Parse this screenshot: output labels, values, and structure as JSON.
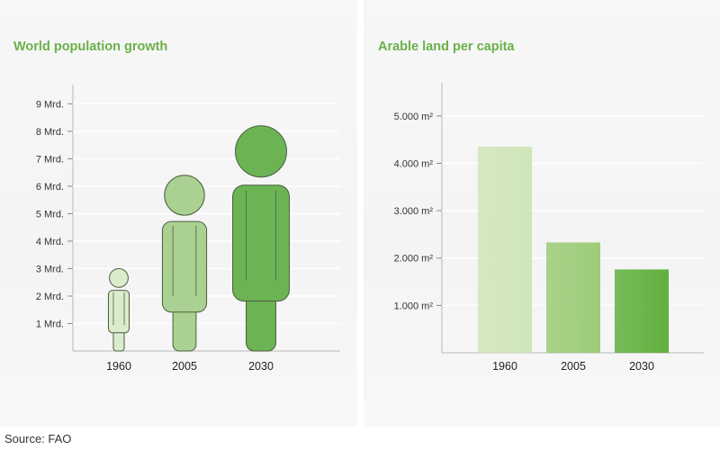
{
  "source": "Source: FAO",
  "chart_data": [
    {
      "type": "bar",
      "style": "pictogram",
      "title": "World population growth",
      "categories": [
        "1960",
        "2005",
        "2030"
      ],
      "values": [
        3.0,
        6.4,
        8.2
      ],
      "y_ticks": [
        1,
        2,
        3,
        4,
        5,
        6,
        7,
        8,
        9
      ],
      "y_tick_labels": [
        "1 Mrd.",
        "2 Mrd.",
        "3 Mrd.",
        "4 Mrd.",
        "5 Mrd.",
        "6 Mrd.",
        "7 Mrd.",
        "8 Mrd.",
        "9 Mrd."
      ],
      "ylim": [
        0,
        9.7
      ],
      "grid": true,
      "colors": [
        "#dbeccd",
        "#aad191",
        "#6cb354"
      ],
      "outline_color": "#4a5e40"
    },
    {
      "type": "bar",
      "title": "Arable land per capita",
      "categories": [
        "1960",
        "2005",
        "2030"
      ],
      "values": [
        4350,
        2330,
        1760
      ],
      "y_ticks": [
        1000,
        2000,
        3000,
        4000,
        5000
      ],
      "y_tick_labels": [
        "1.000 m²",
        "2.000 m²",
        "3.000 m²",
        "4.000 m²",
        "5.000 m²"
      ],
      "ylim": [
        0,
        5700
      ],
      "grid": true,
      "colors": [
        "#cfe6b9",
        "#9ccc78",
        "#62b03e"
      ]
    }
  ]
}
